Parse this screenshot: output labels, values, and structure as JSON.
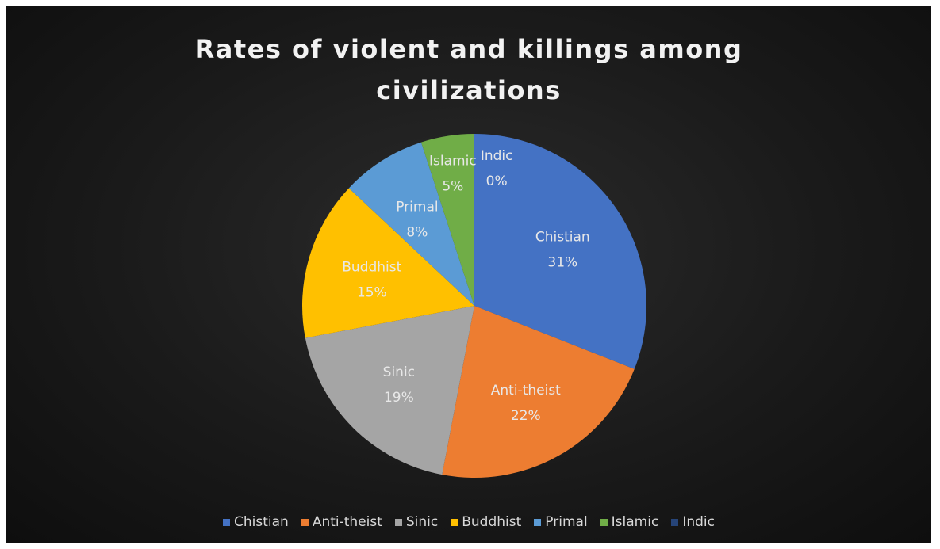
{
  "chart_data": {
    "type": "pie",
    "title_lines": [
      "Rates of violent and killings among",
      "civilizations"
    ],
    "categories": [
      "Chistian",
      "Anti-theist",
      "Sinic",
      "Buddhist",
      "Primal",
      "Islamic",
      "Indic"
    ],
    "values": [
      31,
      22,
      19,
      15,
      8,
      5,
      0
    ],
    "value_labels": [
      "31%",
      "22%",
      "19%",
      "15%",
      "8%",
      "5%",
      "0%"
    ],
    "colors": [
      "#4472C4",
      "#ED7D31",
      "#A5A5A5",
      "#FFC000",
      "#5B9BD5",
      "#70AD47",
      "#264478"
    ],
    "label_colors": [
      "#e8e8e8",
      "#e8e8e8",
      "#e8e8e8",
      "#e8e8e8",
      "#e8e8e8",
      "#e8e8e8",
      "#e8e8e8"
    ],
    "start_angle_deg": 0,
    "direction": "clockwise",
    "legend_position": "bottom"
  }
}
